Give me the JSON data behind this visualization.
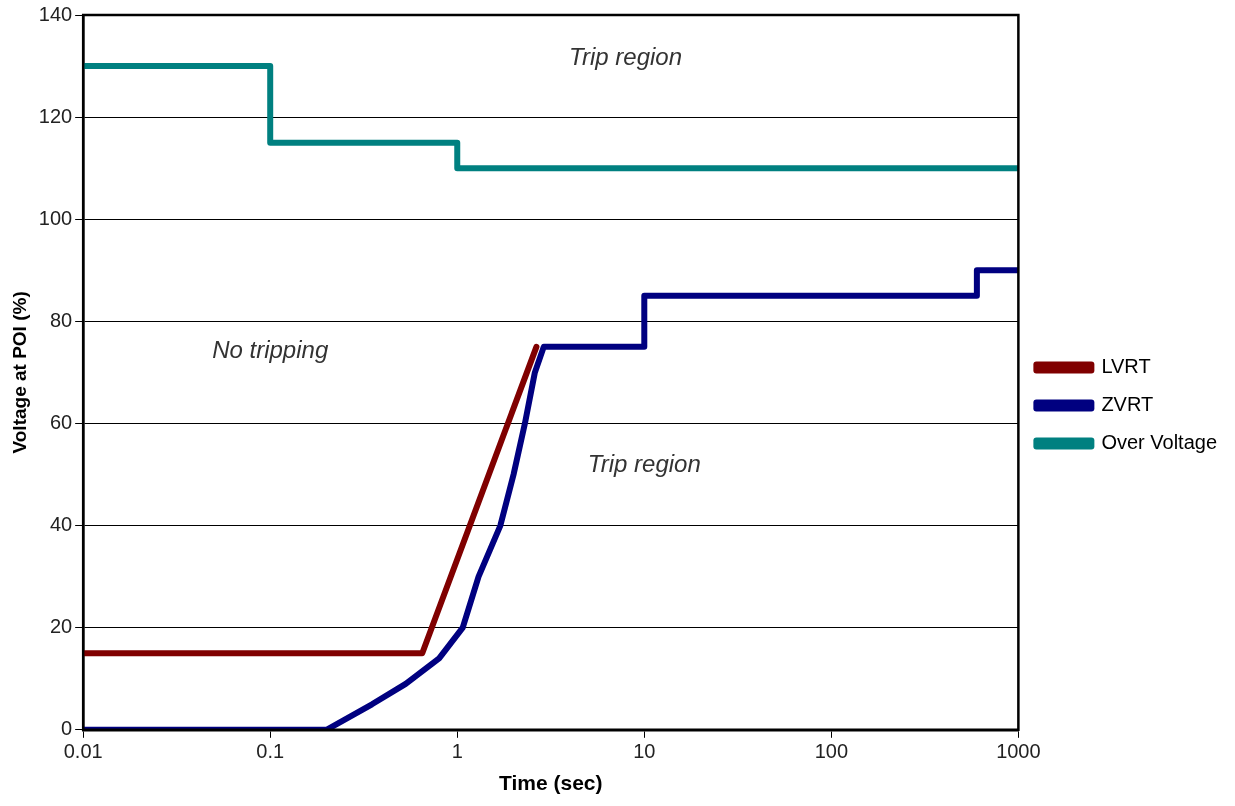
{
  "chart_data": {
    "type": "line",
    "xlabel": "Time (sec)",
    "ylabel": "Voltage at POI (%)",
    "log": "x",
    "xlim": [
      0.01,
      1000
    ],
    "xticks": [
      0.01,
      0.1,
      1,
      10,
      100,
      1000
    ],
    "ylim": [
      0,
      140
    ],
    "yticks": [
      0,
      20,
      40,
      60,
      80,
      100,
      120,
      140
    ],
    "grid": "y",
    "legend": "right",
    "line_style": "solid",
    "marker": "none",
    "series": [
      {
        "name": "LVRT",
        "color": "#800000",
        "type": "line",
        "x": [
          0.01,
          0.65,
          2.65
        ],
        "values": [
          15,
          15,
          75
        ]
      },
      {
        "name": "ZVRT",
        "color": "#000080",
        "type": "line",
        "x": [
          0.01,
          0.2,
          0.35,
          0.53,
          0.8,
          1.07,
          1.3,
          1.7,
          2.0,
          2.3,
          2.6,
          2.9,
          10,
          10,
          600,
          600,
          1000
        ],
        "values": [
          0,
          0,
          5,
          9,
          14,
          20,
          30,
          40,
          50,
          60,
          70,
          75,
          75,
          85,
          85,
          90,
          90
        ]
      },
      {
        "name": "Over Voltage",
        "color": "#008080",
        "type": "step",
        "x": [
          0.01,
          0.1,
          1,
          1000
        ],
        "values": [
          130,
          115,
          110,
          110
        ]
      }
    ],
    "annotations": [
      "Trip region",
      "No tripping",
      "Trip region"
    ]
  }
}
